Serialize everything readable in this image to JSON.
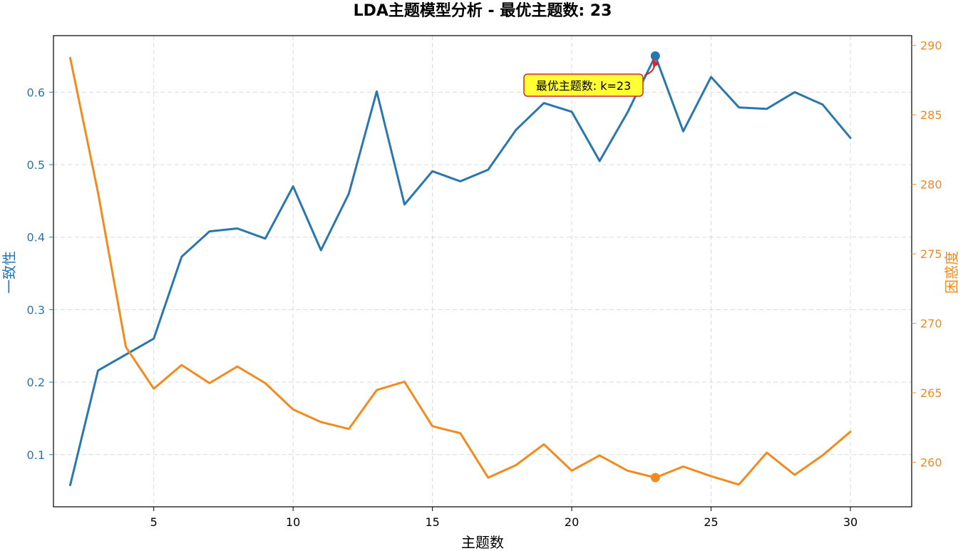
{
  "chart_data": {
    "type": "line",
    "title": "LDA主题模型分析 - 最优主题数: 23",
    "xlabel": "主题数",
    "ylabel_left": "一致性",
    "ylabel_right": "困惑度",
    "x": [
      2,
      3,
      4,
      5,
      6,
      7,
      8,
      9,
      10,
      11,
      12,
      13,
      14,
      15,
      16,
      17,
      18,
      19,
      20,
      21,
      22,
      23,
      24,
      25,
      26,
      27,
      28,
      29,
      30
    ],
    "xticks": [
      5,
      10,
      15,
      20,
      25,
      30
    ],
    "xlim": [
      1.4,
      32.2
    ],
    "series": [
      {
        "name": "一致性",
        "axis": "left",
        "color": "#2a77ae",
        "values": [
          0.058,
          0.216,
          0.238,
          0.26,
          0.373,
          0.408,
          0.412,
          0.398,
          0.47,
          0.382,
          0.46,
          0.601,
          0.445,
          0.491,
          0.477,
          0.493,
          0.548,
          0.585,
          0.573,
          0.505,
          0.572,
          0.65,
          0.546,
          0.621,
          0.579,
          0.577,
          0.6,
          0.583,
          0.537
        ]
      },
      {
        "name": "困惑度",
        "axis": "right",
        "color": "#f28a1e",
        "values": [
          289.1,
          279.4,
          268.3,
          265.3,
          267.0,
          265.7,
          266.9,
          265.7,
          263.8,
          262.9,
          262.4,
          265.2,
          265.8,
          262.6,
          262.1,
          258.9,
          259.8,
          261.3,
          259.4,
          260.5,
          259.4,
          258.9,
          259.7,
          259.0,
          258.4,
          260.7,
          259.1,
          260.5,
          262.2
        ]
      }
    ],
    "ylim_left": [
      0.028,
      0.678
    ],
    "yticks_left": [
      "0.1",
      "0.2",
      "0.3",
      "0.4",
      "0.5",
      "0.6"
    ],
    "ylim_right": [
      256.8,
      290.7
    ],
    "yticks_right": [
      "260",
      "265",
      "270",
      "275",
      "280",
      "285",
      "290"
    ],
    "grid": true,
    "optimal": {
      "x": 23,
      "coherence": 0.65,
      "perplexity": 258.9,
      "label": "最优主题数: k=23",
      "box_fill": "#ffff33",
      "box_edge": "#d62728",
      "arrow_color": "#d62728"
    }
  }
}
